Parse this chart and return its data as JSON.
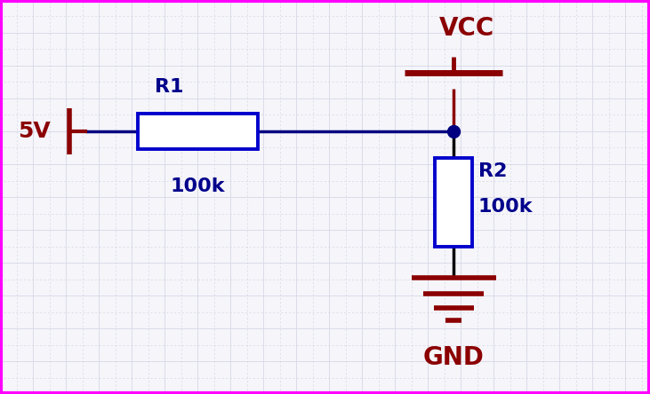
{
  "background_color": "#f5f5fa",
  "grid_color_solid": "#d8d8e8",
  "grid_color_dash": "#d0d0e0",
  "wire_color": "#000080",
  "wire_color_black": "#000000",
  "component_color": "#0000cc",
  "label_color": "#00008B",
  "source_color": "#8B0000",
  "gnd_color": "#8B0000",
  "vcc_color": "#8B0000",
  "fig_width": 7.31,
  "fig_height": 4.44,
  "dpi": 100,
  "border_color": "#ff00ff",
  "border_lw": 3.0,
  "r1_label": "R1",
  "r1_value": "100k",
  "r2_label": "R2",
  "r2_value": "100k",
  "v_label": "5V",
  "vcc_label": "VCC",
  "gnd_label": "GND",
  "lw_wire": 2.5,
  "lw_comp": 2.8,
  "lw_symbol": 4.0
}
